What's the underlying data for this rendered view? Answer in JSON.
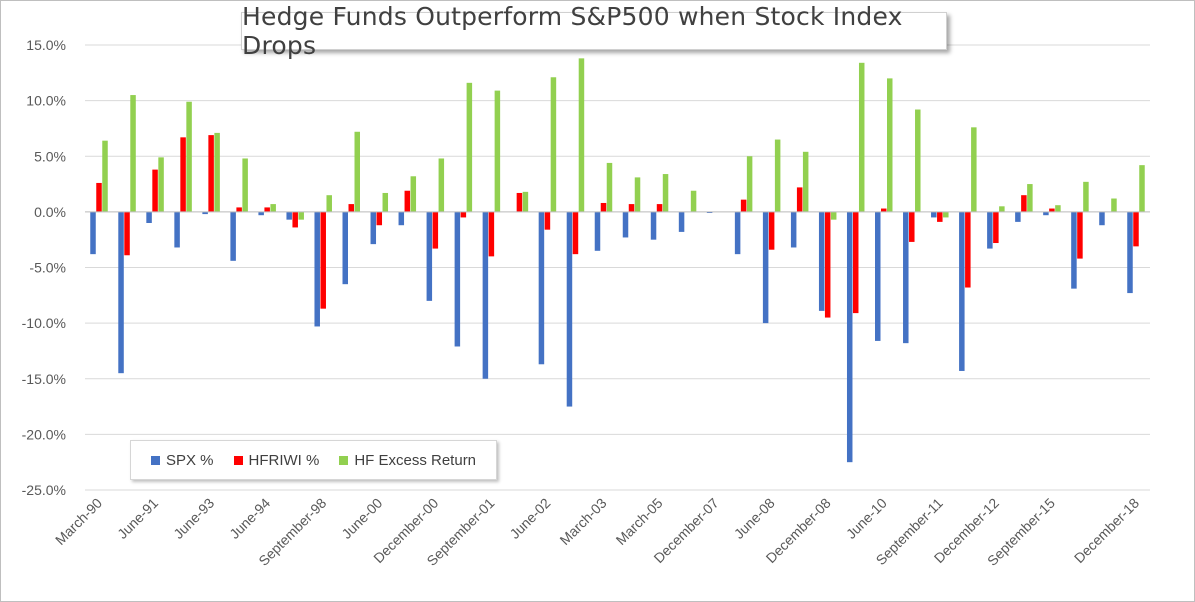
{
  "chart_data": {
    "type": "bar",
    "title": "Hedge Funds Outperform S&P500 when Stock Index Drops",
    "ylim": [
      -0.25,
      0.15
    ],
    "yticks": [
      "15.0%",
      "10.0%",
      "5.0%",
      "0.0%",
      "-5.0%",
      "-10.0%",
      "-15.0%",
      "-20.0%",
      "-25.0%"
    ],
    "grid": true,
    "legend_position": "bottom-left",
    "x_tick_labels": [
      "March-90",
      "June-91",
      "June-93",
      "June-94",
      "September-98",
      "June-00",
      "December-00",
      "September-01",
      "June-02",
      "March-03",
      "March-05",
      "December-07",
      "June-08",
      "December-08",
      "June-10",
      "September-11",
      "December-12",
      "September-15",
      "December-18"
    ],
    "series": [
      {
        "name": "SPX %",
        "color": "#4472c4",
        "values": [
          -3.8,
          -14.5,
          -1.0,
          -3.2,
          -0.2,
          -4.4,
          -0.3,
          -0.7,
          -10.3,
          -6.5,
          -2.9,
          -1.2,
          -8.0,
          -12.1,
          -15.0,
          0.0,
          -13.7,
          -17.5,
          -3.5,
          -2.3,
          -2.5,
          -1.8,
          -0.1,
          -3.8,
          -10.0,
          -3.2,
          -8.9,
          -22.5,
          -11.6,
          -11.8,
          -0.5,
          -14.3,
          -3.3,
          -0.9,
          -0.3,
          -6.9,
          -1.2,
          -7.3
        ]
      },
      {
        "name": "HFRIWI %",
        "color": "#ff0000",
        "values": [
          2.6,
          -3.9,
          3.8,
          6.7,
          6.9,
          0.4,
          0.4,
          -1.4,
          -8.7,
          0.7,
          -1.2,
          1.9,
          -3.3,
          -0.5,
          -4.0,
          1.7,
          -1.6,
          -3.8,
          0.8,
          0.7,
          0.7,
          0.0,
          0.0,
          1.1,
          -3.4,
          2.2,
          -9.5,
          -9.1,
          0.3,
          -2.7,
          -0.9,
          -6.8,
          -2.8,
          1.5,
          0.3,
          -4.2,
          0.0,
          -3.1
        ]
      },
      {
        "name": "HF Excess Return",
        "color": "#92d050",
        "values": [
          6.4,
          10.5,
          4.9,
          9.9,
          7.1,
          4.8,
          0.7,
          -0.7,
          1.5,
          7.2,
          1.7,
          3.2,
          4.8,
          11.6,
          10.9,
          1.8,
          12.1,
          13.8,
          4.4,
          3.1,
          3.4,
          1.9,
          0.0,
          5.0,
          6.5,
          5.4,
          -0.7,
          13.4,
          12.0,
          9.2,
          -0.5,
          7.6,
          0.5,
          2.5,
          0.6,
          2.7,
          1.2,
          4.2
        ]
      }
    ]
  }
}
